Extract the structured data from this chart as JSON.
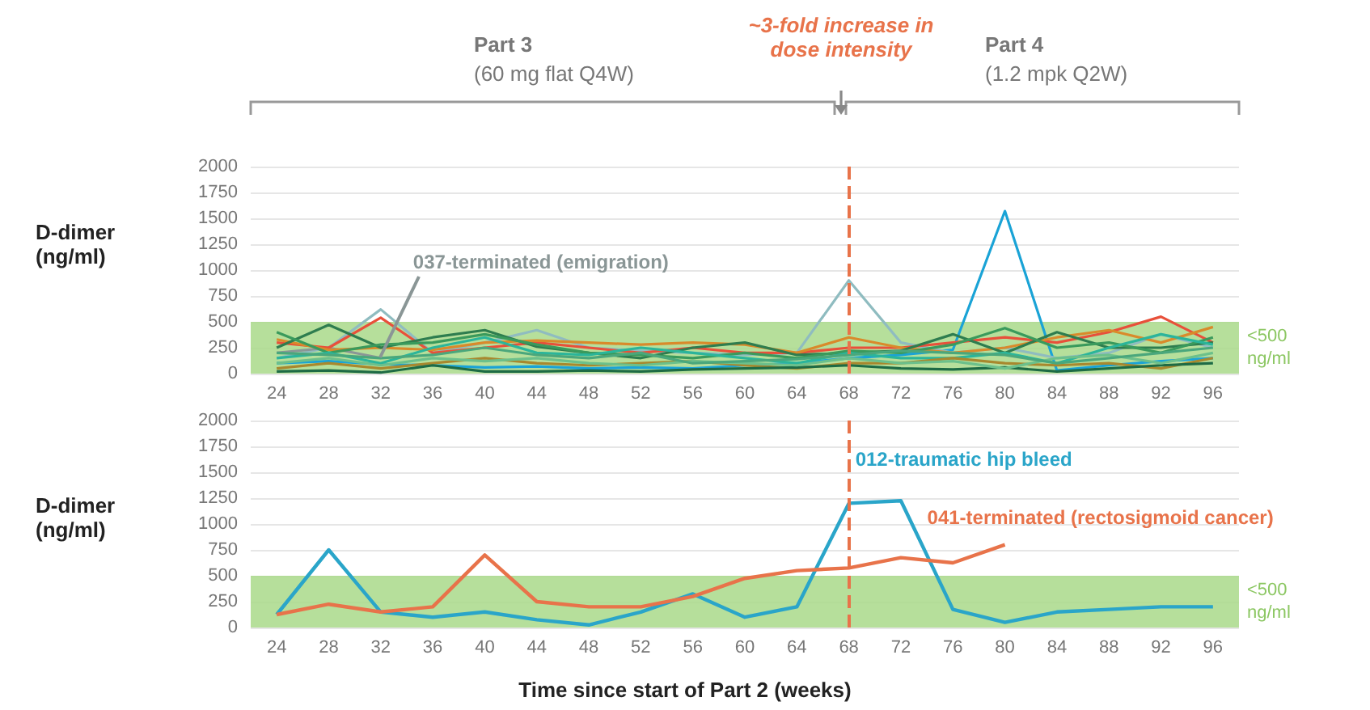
{
  "chart_data": [
    {
      "type": "line",
      "ylabel": "D-dimer (ng/ml)",
      "annotations": [
        "Part 3",
        "(60 mg flat Q4W)",
        "~3-fold increase in dose intensity",
        "Part 4",
        "(1.2 mpk Q2W)",
        {
          "text": "037-terminated (emigration)",
          "x": "32",
          "y": 150
        }
      ],
      "categories": [
        "24",
        "28",
        "32",
        "36",
        "40",
        "44",
        "48",
        "52",
        "56",
        "60",
        "64",
        "68",
        "72",
        "76",
        "80",
        "84",
        "88",
        "92",
        "96"
      ],
      "series": [
        {
          "color": "#1aa3d6",
          "values": [
            100,
            120,
            90,
            80,
            60,
            70,
            50,
            60,
            50,
            80,
            100,
            150,
            180,
            230,
            1570,
            30,
            80,
            120,
            150
          ]
        },
        {
          "color": "#8fbcc0",
          "values": [
            150,
            250,
            620,
            200,
            300,
            420,
            250,
            220,
            200,
            180,
            200,
            900,
            300,
            200,
            250,
            150,
            200,
            380,
            250
          ]
        },
        {
          "color": "#8a9696",
          "values": [
            200,
            250,
            150,
            null,
            null,
            null,
            null,
            null,
            null,
            null,
            null,
            null,
            null,
            null,
            null,
            null,
            null,
            null,
            null
          ]
        },
        {
          "color": "#e8503a",
          "values": [
            300,
            250,
            540,
            200,
            250,
            300,
            250,
            200,
            250,
            200,
            200,
            250,
            250,
            300,
            350,
            300,
            400,
            550,
            300
          ]
        },
        {
          "color": "#d98a2b",
          "values": [
            330,
            230,
            250,
            230,
            300,
            320,
            300,
            280,
            300,
            280,
            200,
            350,
            250,
            200,
            250,
            350,
            420,
            300,
            450
          ]
        },
        {
          "color": "#2e7d4f",
          "values": [
            250,
            470,
            250,
            350,
            420,
            260,
            200,
            150,
            250,
            300,
            180,
            200,
            220,
            380,
            200,
            400,
            250,
            250,
            300
          ]
        },
        {
          "color": "#3a9a5c",
          "values": [
            400,
            200,
            280,
            300,
            380,
            280,
            200,
            180,
            150,
            200,
            150,
            220,
            200,
            280,
            440,
            250,
            300,
            200,
            350
          ]
        },
        {
          "color": "#2bb59a",
          "values": [
            150,
            200,
            100,
            250,
            350,
            200,
            180,
            250,
            200,
            150,
            100,
            200,
            150,
            150,
            200,
            100,
            250,
            380,
            280
          ]
        },
        {
          "color": "#a8882e",
          "values": [
            50,
            100,
            50,
            100,
            150,
            100,
            80,
            100,
            120,
            80,
            50,
            100,
            100,
            150,
            100,
            80,
            100,
            50,
            150
          ]
        },
        {
          "color": "#1e6b45",
          "values": [
            20,
            30,
            10,
            80,
            20,
            20,
            30,
            20,
            40,
            50,
            60,
            80,
            50,
            40,
            60,
            20,
            50,
            80,
            100
          ]
        },
        {
          "color": "#6cc08b",
          "values": [
            100,
            150,
            80,
            150,
            120,
            150,
            100,
            80,
            120,
            100,
            80,
            150,
            100,
            120,
            50,
            150,
            180,
            100,
            200
          ]
        },
        {
          "color": "#4aa77c",
          "values": [
            200,
            180,
            150,
            180,
            250,
            180,
            150,
            200,
            100,
            120,
            140,
            180,
            220,
            200,
            180,
            100,
            150,
            200,
            250
          ]
        }
      ],
      "ylim": [
        0,
        2000
      ],
      "yticks": [
        0,
        250,
        500,
        750,
        1000,
        1250,
        1500,
        1750,
        2000
      ],
      "grid": "y",
      "marker": "none",
      "bands": [
        {
          "axis": "y",
          "from": 0,
          "to": 500,
          "label": "<500 ng/ml",
          "color": "#a9d98a"
        }
      ],
      "ref_lines": [
        {
          "axis": "x",
          "value": "68",
          "color": "#e8734a",
          "line_style": "dashed"
        }
      ]
    },
    {
      "type": "line",
      "ylabel": "D-dimer (ng/ml)",
      "xlabel": "Time since start of Part 2 (weeks)",
      "annotations": [
        {
          "text": "012-traumatic hip bleed",
          "x": "68",
          "y": 1200
        },
        {
          "text": "041-terminated (rectosigmoid cancer)",
          "x": "80",
          "y": 800
        }
      ],
      "categories": [
        "24",
        "28",
        "32",
        "36",
        "40",
        "44",
        "48",
        "52",
        "56",
        "60",
        "64",
        "68",
        "72",
        "76",
        "80",
        "84",
        "88",
        "92",
        "96"
      ],
      "series": [
        {
          "color": "#2aa5c9",
          "values": [
            125,
            750,
            150,
            100,
            150,
            75,
            25,
            150,
            325,
            100,
            200,
            1200,
            1225,
            175,
            50,
            150,
            175,
            200,
            200
          ]
        },
        {
          "color": "#e8734a",
          "values": [
            125,
            225,
            150,
            200,
            700,
            250,
            200,
            200,
            300,
            475,
            550,
            575,
            675,
            625,
            800,
            null,
            null,
            null,
            null
          ]
        }
      ],
      "ylim": [
        0,
        2000
      ],
      "yticks": [
        0,
        250,
        500,
        750,
        1000,
        1250,
        1500,
        1750,
        2000
      ],
      "grid": "y",
      "marker": "none",
      "bands": [
        {
          "axis": "y",
          "from": 0,
          "to": 500,
          "label": "<500 ng/ml",
          "color": "#a9d98a"
        }
      ],
      "ref_lines": [
        {
          "axis": "x",
          "value": "68",
          "color": "#e8734a",
          "line_style": "dashed"
        }
      ]
    }
  ]
}
